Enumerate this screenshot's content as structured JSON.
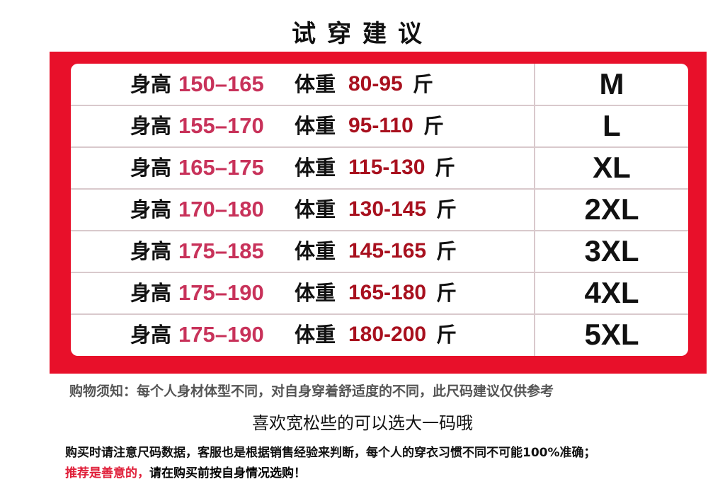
{
  "title": "试穿建议",
  "rows": [
    {
      "height_label": "身高",
      "height": "150–165",
      "weight_label": "体重",
      "weight": "80-95",
      "unit": "斤",
      "size": "M"
    },
    {
      "height_label": "身高",
      "height": "155–170",
      "weight_label": "体重",
      "weight": "95-110",
      "unit": "斤",
      "size": "L"
    },
    {
      "height_label": "身高",
      "height": "165–175",
      "weight_label": "体重",
      "weight": "115-130",
      "unit": "斤",
      "size": "XL"
    },
    {
      "height_label": "身高",
      "height": "170–180",
      "weight_label": "体重",
      "weight": "130-145",
      "unit": "斤",
      "size": "2XL"
    },
    {
      "height_label": "身高",
      "height": "175–185",
      "weight_label": "体重",
      "weight": "145-165",
      "unit": "斤",
      "size": "3XL"
    },
    {
      "height_label": "身高",
      "height": "175–190",
      "weight_label": "体重",
      "weight": "165-180",
      "unit": "斤",
      "size": "4XL"
    },
    {
      "height_label": "身高",
      "height": "175–190",
      "weight_label": "体重",
      "weight": "180-200",
      "unit": "斤",
      "size": "5XL"
    }
  ],
  "notes": {
    "shopping_notice": "购物须知：每个人身材体型不同，对自身穿着舒适度的不同，此尺码建议仅供参考",
    "loose_tip": "喜欢宽松些的可以选大一码哦",
    "accuracy": "购买时请注意尺码数据，客服也是根据销售经验来判断，每个人的穿衣习惯不同不可能100%准确；",
    "recommend_red": "推荐是善意的，",
    "recommend_rest": "请在购买前按自身情况选购！"
  },
  "colors": {
    "frame": "#e8102a",
    "height_value": "#c8325a",
    "weight_value": "#a8101e"
  }
}
